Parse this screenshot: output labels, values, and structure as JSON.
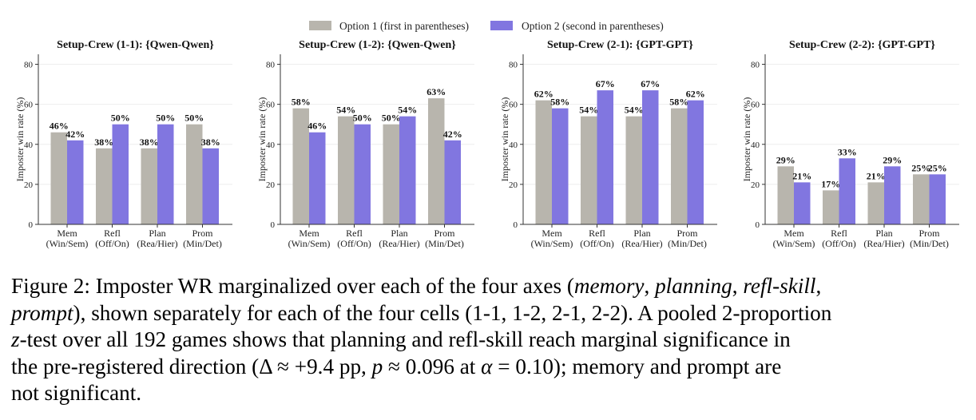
{
  "legend": [
    {
      "label": "Option 1 (first in parentheses)",
      "color": "#b8b5ad"
    },
    {
      "label": "Option 2 (second in parentheses)",
      "color": "#8176e0"
    }
  ],
  "chart_data": [
    {
      "type": "bar",
      "title": "Setup-Crew (1-1): {Qwen-Qwen}",
      "ylabel": "Imposter win rate (%)",
      "ylim": [
        0,
        85
      ],
      "yticks": [
        0,
        20,
        40,
        60,
        80
      ],
      "categories": [
        "Mem\n(Win/Sem)",
        "Refl\n(Off/On)",
        "Plan\n(Rea/Hier)",
        "Prom\n(Min/Det)"
      ],
      "series": [
        {
          "name": "Option 1 (first in parentheses)",
          "values": [
            46,
            38,
            38,
            50
          ],
          "labels": [
            "46%",
            "38%",
            "38%",
            "50%"
          ]
        },
        {
          "name": "Option 2 (second in parentheses)",
          "values": [
            42,
            50,
            50,
            38
          ],
          "labels": [
            "42%",
            "50%",
            "50%",
            "38%"
          ]
        }
      ]
    },
    {
      "type": "bar",
      "title": "Setup-Crew (1-2): {Qwen-Qwen}",
      "ylabel": "Imposter win rate (%)",
      "ylim": [
        0,
        85
      ],
      "yticks": [
        0,
        20,
        40,
        60,
        80
      ],
      "categories": [
        "Mem\n(Win/Sem)",
        "Refl\n(Off/On)",
        "Plan\n(Rea/Hier)",
        "Prom\n(Min/Det)"
      ],
      "series": [
        {
          "name": "Option 1 (first in parentheses)",
          "values": [
            58,
            54,
            50,
            63
          ],
          "labels": [
            "58%",
            "54%",
            "50%",
            "63%"
          ]
        },
        {
          "name": "Option 2 (second in parentheses)",
          "values": [
            46,
            50,
            54,
            42
          ],
          "labels": [
            "46%",
            "50%",
            "54%",
            "42%"
          ]
        }
      ]
    },
    {
      "type": "bar",
      "title": "Setup-Crew (2-1): {GPT-GPT}",
      "ylabel": "Imposter win rate (%)",
      "ylim": [
        0,
        85
      ],
      "yticks": [
        0,
        20,
        40,
        60,
        80
      ],
      "categories": [
        "Mem\n(Win/Sem)",
        "Refl\n(Off/On)",
        "Plan\n(Rea/Hier)",
        "Prom\n(Min/Det)"
      ],
      "series": [
        {
          "name": "Option 1 (first in parentheses)",
          "values": [
            62,
            54,
            54,
            58
          ],
          "labels": [
            "62%",
            "54%",
            "54%",
            "58%"
          ]
        },
        {
          "name": "Option 2 (second in parentheses)",
          "values": [
            58,
            67,
            67,
            62
          ],
          "labels": [
            "58%",
            "67%",
            "67%",
            "62%"
          ]
        }
      ]
    },
    {
      "type": "bar",
      "title": "Setup-Crew (2-2): {GPT-GPT}",
      "ylabel": "Imposter win rate (%)",
      "ylim": [
        0,
        85
      ],
      "yticks": [
        0,
        20,
        40,
        60,
        80
      ],
      "categories": [
        "Mem\n(Win/Sem)",
        "Refl\n(Off/On)",
        "Plan\n(Rea/Hier)",
        "Prom\n(Min/Det)"
      ],
      "series": [
        {
          "name": "Option 1 (first in parentheses)",
          "values": [
            29,
            17,
            21,
            25
          ],
          "labels": [
            "29%",
            "17%",
            "21%",
            "25%"
          ]
        },
        {
          "name": "Option 2 (second in parentheses)",
          "values": [
            21,
            33,
            29,
            25
          ],
          "labels": [
            "21%",
            "33%",
            "29%",
            "25%"
          ]
        }
      ]
    }
  ],
  "caption": {
    "lead": "Figure 2: Imposter WR marginalized over each of the four axes (",
    "memory": "memory",
    "sep1": ", ",
    "planning": "planning",
    "sep2": ", ",
    "refl_skill": "refl-skill",
    "sep3": ",\n",
    "prompt": "prompt",
    "body1": "), shown separately for each of the four cells (1-1, 1-2, 2-1, 2-2). A pooled 2-proportion\n",
    "z": "z",
    "body2": "-test over all 192 games shows that planning and refl-skill reach marginal significance in\nthe pre-registered direction (Δ ≈ +9.4 pp, ",
    "p": "p",
    "body3": " ≈ 0.096 at ",
    "alpha": "α",
    "body4": " = 0.10); memory and prompt are\nnot significant."
  }
}
